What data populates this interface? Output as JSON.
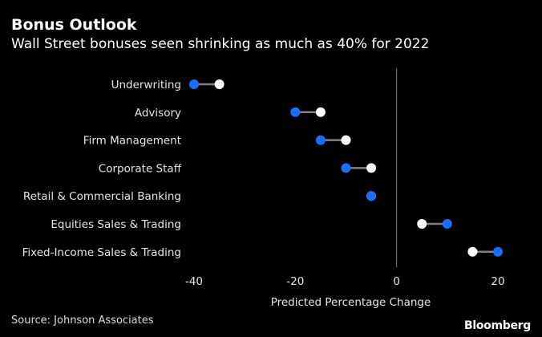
{
  "chart_data": {
    "type": "dot",
    "title": "Bonus Outlook",
    "subtitle": "Wall Street bonuses seen shrinking as much as 40% for 2022",
    "xlabel": "Predicted Percentage Change",
    "xlim": [
      -40,
      20
    ],
    "xticks": [
      -40,
      -20,
      0,
      20
    ],
    "categories": [
      "Underwriting",
      "Advisory",
      "Firm Management",
      "Corporate Staff",
      "Retail & Commercial Banking",
      "Equities Sales & Trading",
      "Fixed-Income Sales & Trading"
    ],
    "series": [
      {
        "color": "#1a6eff",
        "values": [
          -40,
          -20,
          -15,
          -10,
          -5,
          10,
          20
        ]
      },
      {
        "color": "#ffffff",
        "values": [
          -35,
          -15,
          -10,
          -5,
          -5,
          5,
          15
        ]
      }
    ],
    "connector_color": "#808080",
    "zero_line_color": "#808080",
    "grid": false
  },
  "footer": {
    "source": "Source: Johnson Associates",
    "brand": "Bloomberg"
  }
}
